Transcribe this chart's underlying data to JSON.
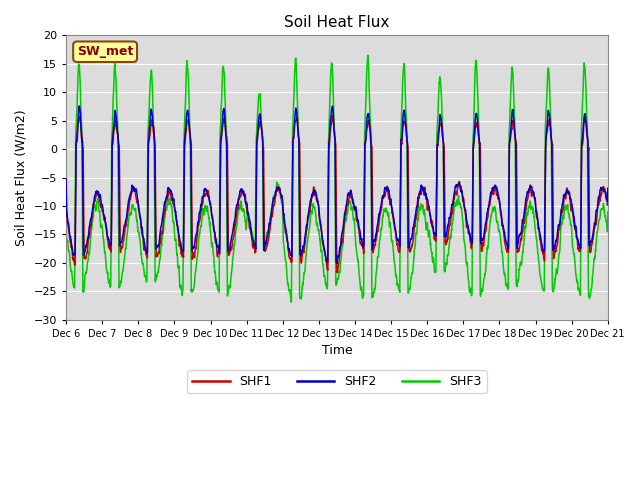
{
  "title": "Soil Heat Flux",
  "ylabel": "Soil Heat Flux (W/m2)",
  "xlabel": "Time",
  "annotation_text": "SW_met",
  "ylim": [
    -30,
    20
  ],
  "yticks": [
    -30,
    -25,
    -20,
    -15,
    -10,
    -5,
    0,
    5,
    10,
    15,
    20
  ],
  "xtick_labels": [
    "Dec 6",
    "Dec 7",
    "Dec 8",
    "Dec 9",
    "Dec 10",
    "Dec 11",
    "Dec 12",
    "Dec 13",
    "Dec 14",
    "Dec 15",
    "Dec 16",
    "Dec 17",
    "Dec 18",
    "Dec 19",
    "Dec 20",
    "Dec 21"
  ],
  "n_days": 15,
  "colors": {
    "SHF1": "#cc0000",
    "SHF2": "#0000cc",
    "SHF3": "#00cc00",
    "background": "#dcdcdc",
    "annotation_bg": "#ffff99",
    "annotation_border": "#8B4513"
  },
  "linewidth": 1.1
}
